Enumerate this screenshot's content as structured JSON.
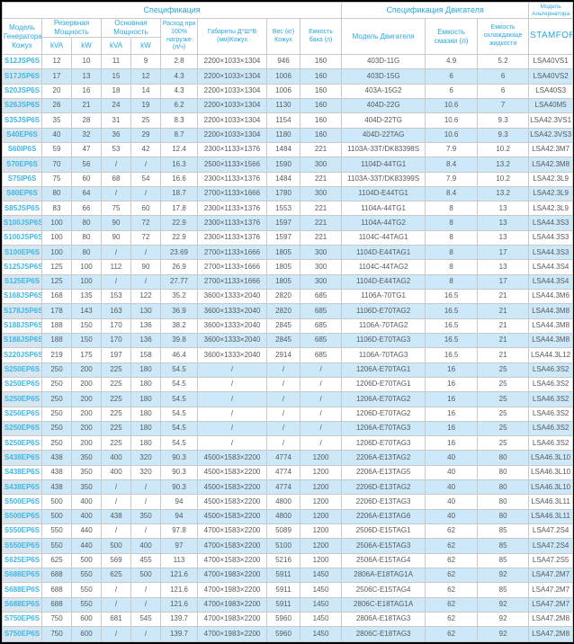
{
  "colors": {
    "accent": "#29a8df",
    "stripe": "#cde9f9",
    "grid": "#c9c9c9",
    "model_link": "#3db7e8",
    "text": "#58595b"
  },
  "header": {
    "spec_group": "Спецификация",
    "engine_group": "Спецификация Двигателя",
    "alt_group": "Модель Альтернатора",
    "col_model": "Модель Генератора Кожух",
    "col_standby": "Резервная Мощность",
    "col_prime": "Основная Мощность",
    "kva": "kVA",
    "kw": "kW",
    "col_fuel": "Расход при 100% нагрузке (л/ч)",
    "col_dims": "Габариты Д*Ш*В (мм)Кожух",
    "col_weight": "Вес (кг) Кожух",
    "col_tank": "Емкость бака (л)",
    "col_engine": "Модель Двигателя",
    "col_oil": "Емкость смазки (л)",
    "col_coolant": "Емкость охлаждающе жидкости",
    "col_alternator": "STAMFORD"
  },
  "table": {
    "rows": [
      [
        "S12JSP6S",
        "12",
        "10",
        "11",
        "9",
        "2.8",
        "2200×1033×1304",
        "946",
        "160",
        "403D-11G",
        "4.9",
        "5.2",
        "LSA40VS1"
      ],
      [
        "S17JSP6S",
        "17",
        "13",
        "15",
        "12",
        "4.3",
        "2200×1033×1304",
        "1006",
        "160",
        "403D-15G",
        "6",
        "6",
        "LSA40VS2"
      ],
      [
        "S20JSP6S",
        "20",
        "16",
        "18",
        "14",
        "4.3",
        "2200×1033×1304",
        "1006",
        "160",
        "403A-15G2",
        "6",
        "6",
        "LSA40S3"
      ],
      [
        "S26JSP6S",
        "26",
        "21",
        "24",
        "19",
        "6.2",
        "2200×1033×1304",
        "1130",
        "160",
        "404D-22G",
        "10.6",
        "7",
        "LSA40M5"
      ],
      [
        "S35JSP6S",
        "35",
        "28",
        "31",
        "25",
        "8.3",
        "2200×1033×1304",
        "1154",
        "160",
        "404D-22TG",
        "10.6",
        "9.3",
        "LSA42.3VS1"
      ],
      [
        "S40EP6S",
        "40",
        "32",
        "36",
        "29",
        "8.7",
        "2200×1033×1304",
        "1180",
        "160",
        "404D-22TAG",
        "10.6",
        "9.3",
        "LSA42.3VS3"
      ],
      [
        "S60IP6S",
        "59",
        "47",
        "53",
        "42",
        "12.4",
        "2300×1133×1376",
        "1484",
        "221",
        "1103A-33T/DK83398S",
        "7.9",
        "10.2",
        "LSA42.3M7"
      ],
      [
        "S70EP6S",
        "70",
        "56",
        "/",
        "/",
        "16.3",
        "2500×1133×1566",
        "1590",
        "300",
        "1104D-44TG1",
        "8.4",
        "13.2",
        "LSA42.3M8"
      ],
      [
        "S75IP6S",
        "75",
        "60",
        "68",
        "54",
        "16.6",
        "2300×1133×1376",
        "1484",
        "221",
        "1103A-33T/DK83399S",
        "7.9",
        "10.2",
        "LSA42.3L9"
      ],
      [
        "S80EP6S",
        "80",
        "64",
        "/",
        "/",
        "18.7",
        "2700×1133×1666",
        "1780",
        "300",
        "1104D-E44TG1",
        "8.4",
        "13.2",
        "LSA42.3L9"
      ],
      [
        "S85JSP6S",
        "83",
        "66",
        "75",
        "60",
        "17.8",
        "2300×1133×1376",
        "1553",
        "221",
        "1104A-44TG1",
        "8",
        "13",
        "LSA42.3L9"
      ],
      [
        "S100JSP6S",
        "100",
        "80",
        "90",
        "72",
        "22.9",
        "2300×1133×1376",
        "1597",
        "221",
        "1104A-44TG2",
        "8",
        "13",
        "LSA44.3S3"
      ],
      [
        "S100JSP6S",
        "100",
        "80",
        "90",
        "72",
        "22.9",
        "2300×1133×1376",
        "1597",
        "221",
        "1104C-44TAG1",
        "8",
        "13",
        "LSA44.3S3"
      ],
      [
        "S100EP6S",
        "100",
        "80",
        "/",
        "/",
        "23.69",
        "2700×1133×1666",
        "1805",
        "300",
        "1104D-E44TAG1",
        "8",
        "17",
        "LSA44.3S3"
      ],
      [
        "S125JSP6S",
        "125",
        "100",
        "112",
        "90",
        "26.9",
        "2700×1133×1666",
        "1805",
        "300",
        "1104C-44TAG2",
        "8",
        "13",
        "LSA44.3S4"
      ],
      [
        "S125EP6S",
        "125",
        "100",
        "/",
        "/",
        "27.77",
        "2700×1133×1666",
        "1805",
        "300",
        "1104D-E44TAG2",
        "8",
        "17",
        "LSA44.3S4"
      ],
      [
        "S168JSP6S",
        "168",
        "135",
        "153",
        "122",
        "35.2",
        "3600×1333×2040",
        "2820",
        "685",
        "1106A-70TG1",
        "16.5",
        "21",
        "LSA44.3M6"
      ],
      [
        "S178JSP6S",
        "178",
        "143",
        "163",
        "130",
        "36.9",
        "3600×1333×2040",
        "2820",
        "685",
        "1106D-E70TAG2",
        "16.5",
        "21",
        "LSA44.3M8"
      ],
      [
        "S188JSP6S",
        "188",
        "150",
        "170",
        "136",
        "38.2",
        "3600×1333×2040",
        "2845",
        "685",
        "1106A-70TAG2",
        "16.5",
        "21",
        "LSA44.3M8"
      ],
      [
        "S188JSP6S",
        "188",
        "150",
        "170",
        "136",
        "39.8",
        "3600×1333×2040",
        "2845",
        "685",
        "1106D-E70TAG3",
        "16.5",
        "21",
        "LSA44.3M8"
      ],
      [
        "S220JSP6S",
        "219",
        "175",
        "197",
        "158",
        "46.4",
        "3600×1333×2040",
        "2914",
        "685",
        "1106A-70TAG3",
        "16.5",
        "21",
        "LSA44.3L12"
      ],
      [
        "S250EP6S",
        "250",
        "200",
        "225",
        "180",
        "54.5",
        "/",
        "/",
        "/",
        "1206A-E70TAG1",
        "16",
        "25",
        "LSA46.3S2"
      ],
      [
        "S250EP6S",
        "250",
        "200",
        "225",
        "180",
        "54.5",
        "/",
        "/",
        "/",
        "1206D-E70TAG1",
        "16",
        "25",
        "LSA46.3S2"
      ],
      [
        "S250EP6S",
        "250",
        "200",
        "225",
        "180",
        "54.5",
        "/",
        "/",
        "/",
        "1206A-E70TAG2",
        "16",
        "25",
        "LSA46.3S2"
      ],
      [
        "S250EP6S",
        "250",
        "200",
        "225",
        "180",
        "54.5",
        "/",
        "/",
        "/",
        "1206D-E70TAG2",
        "16",
        "25",
        "LSA46.3S2"
      ],
      [
        "S250EP6S",
        "250",
        "200",
        "225",
        "180",
        "54.5",
        "/",
        "/",
        "/",
        "1206A-E70TAG3",
        "16",
        "25",
        "LSA46.3S2"
      ],
      [
        "S250EP6S",
        "250",
        "200",
        "225",
        "180",
        "54.5",
        "/",
        "/",
        "/",
        "1206D-E70TAG3",
        "16",
        "25",
        "LSA46.3S2"
      ],
      [
        "S438EP6S",
        "438",
        "350",
        "400",
        "320",
        "90.3",
        "4500×1583×2200",
        "4774",
        "1200",
        "2206A-E13TAG2",
        "40",
        "80",
        "LSA46.3L10"
      ],
      [
        "S438EP6S",
        "438",
        "350",
        "400",
        "320",
        "90.3",
        "4500×1583×2200",
        "4774",
        "1200",
        "2206A-E13TAG5",
        "40",
        "80",
        "LSA46.3L10"
      ],
      [
        "S438EP6S",
        "438",
        "350",
        "/",
        "/",
        "90.3",
        "4500×1583×2200",
        "4774",
        "1200",
        "2206D-E13TAG2",
        "40",
        "80",
        "LSA46.3L10"
      ],
      [
        "S500EP6S",
        "500",
        "400",
        "/",
        "/",
        "94",
        "4500×1583×2200",
        "4800",
        "1200",
        "2206D-E13TAG3",
        "40",
        "80",
        "LSA46.3L11"
      ],
      [
        "S500EP6S",
        "500",
        "400",
        "438",
        "350",
        "94",
        "4500×1583×2200",
        "4800",
        "1200",
        "2206A-E13TAG6",
        "40",
        "80",
        "LSA46.3L11"
      ],
      [
        "S550EP6S",
        "550",
        "440",
        "/",
        "/",
        "97.8",
        "4700×1583×2200",
        "5089",
        "1200",
        "2506D-E15TAG1",
        "62",
        "85",
        "LSA47.2S4"
      ],
      [
        "S550EP6S",
        "550",
        "440",
        "500",
        "400",
        "97",
        "4700×1583×2200",
        "5100",
        "1200",
        "2506A-E15TAG3",
        "62",
        "85",
        "LSA47.2S4"
      ],
      [
        "S625EP6S",
        "625",
        "500",
        "569",
        "455",
        "113",
        "4700×1583×2200",
        "5216",
        "1200",
        "2506A-E15TAG4",
        "62",
        "85",
        "LSA47.2S5"
      ],
      [
        "S688EP6S",
        "688",
        "550",
        "625",
        "500",
        "121.6",
        "4700×1983×2200",
        "5911",
        "1450",
        "2806A-E18TAG1A",
        "62",
        "92",
        "LSA47.2M7"
      ],
      [
        "S688EP6S",
        "688",
        "550",
        "/",
        "/",
        "121.6",
        "4700×1983×2200",
        "5911",
        "1450",
        "2506C-E15TAG4",
        "62",
        "85",
        "LSA47.2M7"
      ],
      [
        "S688EP6S",
        "688",
        "550",
        "/",
        "/",
        "121.6",
        "4700×1983×2200",
        "5911",
        "1450",
        "2806C-E18TAG1A",
        "62",
        "92",
        "LSA47.2M7"
      ],
      [
        "S750EP6S",
        "750",
        "600",
        "681",
        "545",
        "139.7",
        "4700×1983×2200",
        "5960",
        "1450",
        "2806A-E18TAG3",
        "62",
        "92",
        "LSA47.2M8"
      ],
      [
        "S750EP6S",
        "750",
        "600",
        "/",
        "/",
        "139.7",
        "4700×1983×2200",
        "5960",
        "1450",
        "2806C-E18TAG3",
        "62",
        "92",
        "LSA47.2M8"
      ]
    ]
  }
}
